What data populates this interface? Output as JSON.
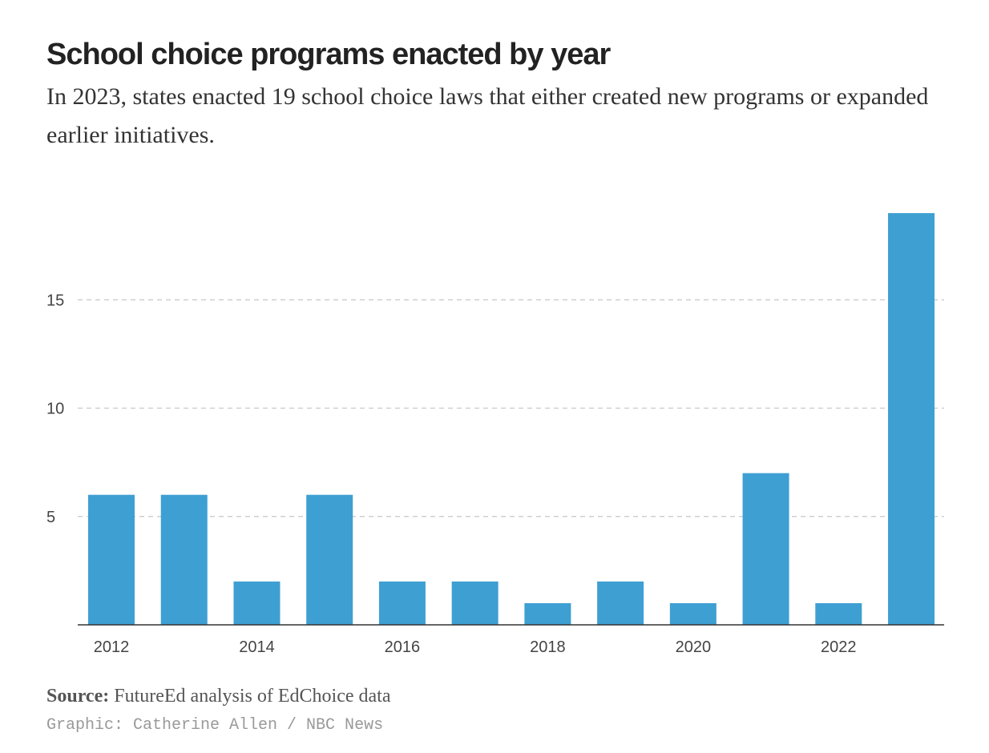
{
  "chart_data": {
    "type": "bar",
    "title": "School choice programs enacted by year",
    "subtitle": "In 2023, states enacted 19 school choice laws that either created new programs or expanded earlier initiatives.",
    "categories": [
      "2012",
      "2013",
      "2014",
      "2015",
      "2016",
      "2017",
      "2018",
      "2019",
      "2020",
      "2021",
      "2022",
      "2023"
    ],
    "values": [
      6,
      6,
      2,
      6,
      2,
      2,
      1,
      2,
      1,
      7,
      1,
      19
    ],
    "x_tick_labels": [
      "2012",
      "2014",
      "2016",
      "2018",
      "2020",
      "2022"
    ],
    "y_ticks": [
      5,
      10,
      15
    ],
    "ylim": [
      0,
      19
    ],
    "xlabel": "",
    "ylabel": "",
    "grid": "horizontal dashed",
    "bar_color": "#3e9fd2"
  },
  "footer": {
    "source_label": "Source:",
    "source_text": " FutureEd analysis of EdChoice data",
    "credit": "Graphic: Catherine Allen / NBC News"
  }
}
